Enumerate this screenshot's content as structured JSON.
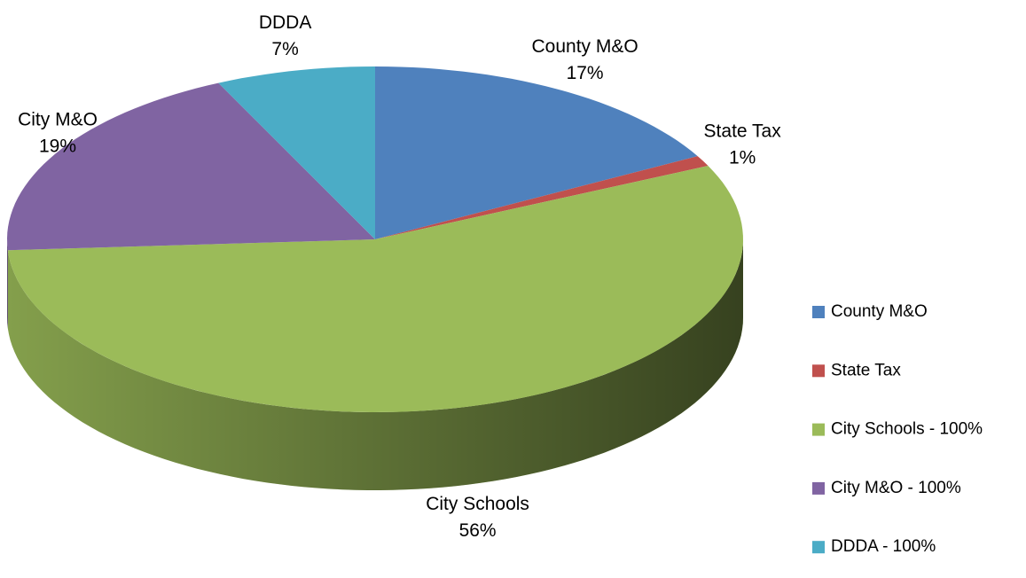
{
  "chart_data": {
    "type": "pie3d",
    "categories": [
      "County M&O",
      "State Tax",
      "City Schools",
      "City M&O",
      "DDDA"
    ],
    "values": [
      17,
      1,
      56,
      19,
      7
    ],
    "value_labels": [
      "17%",
      "1%",
      "56%",
      "19%",
      "7%"
    ],
    "legend_labels": [
      "County M&O",
      "State Tax",
      "City Schools - 100%",
      "City M&O - 100%",
      "DDDA - 100%"
    ],
    "colors": [
      "#4f81bd",
      "#c0504d",
      "#9bbb59",
      "#8064a2",
      "#4bacc6"
    ],
    "legend": "right"
  }
}
